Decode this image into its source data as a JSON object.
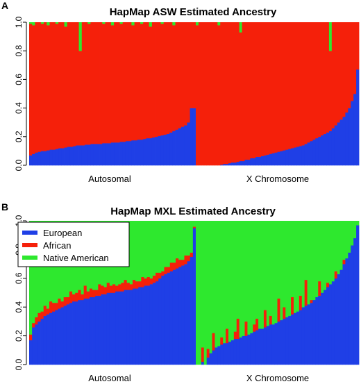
{
  "colors": {
    "european": "#1f3fe6",
    "african": "#f5200a",
    "native_american": "#2ee82e"
  },
  "chart_data": [
    {
      "panel_letter": "A",
      "type": "stacked-bar",
      "title": "HapMap ASW Estimated Ancestry",
      "ylim": [
        0,
        1
      ],
      "yticks": [
        "0.0",
        "0.2",
        "0.4",
        "0.6",
        "0.8",
        "1.0"
      ],
      "group_labels": [
        "Autosomal",
        "X Chromosome"
      ],
      "legend": null,
      "groups": [
        {
          "name": "Autosomal",
          "european": [
            0.07,
            0.08,
            0.09,
            0.095,
            0.1,
            0.1,
            0.105,
            0.11,
            0.11,
            0.115,
            0.12,
            0.12,
            0.125,
            0.13,
            0.13,
            0.135,
            0.14,
            0.14,
            0.14,
            0.145,
            0.145,
            0.15,
            0.15,
            0.15,
            0.15,
            0.155,
            0.155,
            0.155,
            0.16,
            0.16,
            0.16,
            0.165,
            0.165,
            0.17,
            0.17,
            0.175,
            0.175,
            0.18,
            0.18,
            0.185,
            0.19,
            0.19,
            0.195,
            0.2,
            0.205,
            0.21,
            0.215,
            0.22,
            0.23,
            0.24,
            0.25,
            0.26,
            0.27,
            0.28,
            0.3,
            0.4,
            0.4
          ],
          "native_american": [
            0.01,
            0.02,
            0.0,
            0.0,
            0.01,
            0.0,
            0.02,
            0.0,
            0.0,
            0.01,
            0.0,
            0.0,
            0.03,
            0.0,
            0.0,
            0.0,
            0.0,
            0.2,
            0.0,
            0.0,
            0.01,
            0.0,
            0.0,
            0.0,
            0.0,
            0.01,
            0.0,
            0.0,
            0.02,
            0.0,
            0.0,
            0.01,
            0.0,
            0.0,
            0.0,
            0.02,
            0.0,
            0.0,
            0.01,
            0.0,
            0.0,
            0.03,
            0.0,
            0.0,
            0.0,
            0.01,
            0.0,
            0.0,
            0.0,
            0.02,
            0.0,
            0.0,
            0.0,
            0.0,
            0.0,
            0.0,
            0.0
          ]
        },
        {
          "name": "X Chromosome",
          "european": [
            0.0,
            0.0,
            0.0,
            0.0,
            0.0,
            0.0,
            0.0,
            0.0,
            0.0,
            0.005,
            0.01,
            0.01,
            0.015,
            0.02,
            0.02,
            0.025,
            0.03,
            0.03,
            0.04,
            0.04,
            0.05,
            0.05,
            0.06,
            0.06,
            0.065,
            0.07,
            0.075,
            0.08,
            0.085,
            0.09,
            0.095,
            0.1,
            0.105,
            0.11,
            0.115,
            0.12,
            0.125,
            0.13,
            0.135,
            0.14,
            0.15,
            0.16,
            0.17,
            0.18,
            0.19,
            0.2,
            0.21,
            0.22,
            0.23,
            0.24,
            0.26,
            0.28,
            0.3,
            0.32,
            0.34,
            0.37,
            0.4,
            0.45,
            0.5,
            0.67
          ],
          "native_american": [
            0.02,
            0.0,
            0.0,
            0.0,
            0.0,
            0.0,
            0.0,
            0.0,
            0.02,
            0.0,
            0.0,
            0.0,
            0.0,
            0.0,
            0.0,
            0.0,
            0.07,
            0.0,
            0.0,
            0.0,
            0.0,
            0.0,
            0.0,
            0.0,
            0.0,
            0.0,
            0.0,
            0.0,
            0.0,
            0.0,
            0.0,
            0.0,
            0.0,
            0.0,
            0.0,
            0.0,
            0.0,
            0.0,
            0.0,
            0.0,
            0.0,
            0.0,
            0.0,
            0.0,
            0.0,
            0.0,
            0.0,
            0.0,
            0.0,
            0.2,
            0.0,
            0.0,
            0.0,
            0.0,
            0.0,
            0.0,
            0.0,
            0.0,
            0.0,
            0.0
          ]
        }
      ]
    },
    {
      "panel_letter": "B",
      "type": "stacked-bar",
      "title": "HapMap MXL Estimated Ancestry",
      "ylim": [
        0,
        1
      ],
      "yticks": [
        "0.0",
        "0.2",
        "0.4",
        "0.6",
        "0.8",
        "1.0"
      ],
      "group_labels": [
        "Autosomal",
        "X Chromosome"
      ],
      "legend": {
        "position": "top-left",
        "entries": [
          "European",
          "African",
          "Native American"
        ]
      },
      "groups": [
        {
          "name": "Autosomal",
          "european": [
            0.17,
            0.26,
            0.28,
            0.3,
            0.32,
            0.34,
            0.35,
            0.36,
            0.37,
            0.38,
            0.39,
            0.4,
            0.41,
            0.42,
            0.43,
            0.44,
            0.44,
            0.45,
            0.45,
            0.46,
            0.46,
            0.47,
            0.47,
            0.48,
            0.48,
            0.49,
            0.49,
            0.5,
            0.5,
            0.5,
            0.51,
            0.51,
            0.51,
            0.52,
            0.52,
            0.52,
            0.53,
            0.53,
            0.54,
            0.54,
            0.55,
            0.55,
            0.56,
            0.57,
            0.58,
            0.6,
            0.62,
            0.63,
            0.64,
            0.65,
            0.66,
            0.67,
            0.68,
            0.69,
            0.7,
            0.72,
            0.75,
            0.95
          ],
          "african": [
            0.04,
            0.03,
            0.05,
            0.06,
            0.05,
            0.07,
            0.04,
            0.08,
            0.06,
            0.05,
            0.07,
            0.04,
            0.06,
            0.05,
            0.08,
            0.05,
            0.06,
            0.07,
            0.04,
            0.09,
            0.05,
            0.06,
            0.05,
            0.04,
            0.08,
            0.06,
            0.05,
            0.07,
            0.05,
            0.06,
            0.04,
            0.05,
            0.06,
            0.07,
            0.05,
            0.04,
            0.06,
            0.05,
            0.04,
            0.07,
            0.05,
            0.06,
            0.04,
            0.05,
            0.06,
            0.04,
            0.03,
            0.05,
            0.04,
            0.06,
            0.05,
            0.07,
            0.05,
            0.04,
            0.06,
            0.04,
            0.03,
            0.01
          ]
        },
        {
          "name": "X Chromosome",
          "european": [
            0.0,
            0.0,
            0.02,
            0.0,
            0.05,
            0.08,
            0.1,
            0.12,
            0.13,
            0.14,
            0.15,
            0.15,
            0.16,
            0.17,
            0.18,
            0.18,
            0.19,
            0.2,
            0.2,
            0.21,
            0.22,
            0.23,
            0.24,
            0.25,
            0.25,
            0.26,
            0.27,
            0.28,
            0.28,
            0.29,
            0.3,
            0.31,
            0.32,
            0.33,
            0.34,
            0.35,
            0.36,
            0.37,
            0.38,
            0.4,
            0.41,
            0.42,
            0.43,
            0.45,
            0.47,
            0.48,
            0.5,
            0.52,
            0.54,
            0.56,
            0.58,
            0.6,
            0.63,
            0.66,
            0.7,
            0.74,
            0.78,
            0.83,
            0.88,
            0.97
          ],
          "african": [
            0.0,
            0.0,
            0.1,
            0.0,
            0.06,
            0.0,
            0.12,
            0.0,
            0.0,
            0.05,
            0.0,
            0.1,
            0.0,
            0.0,
            0.05,
            0.14,
            0.0,
            0.0,
            0.1,
            0.0,
            0.0,
            0.05,
            0.08,
            0.0,
            0.0,
            0.12,
            0.0,
            0.06,
            0.0,
            0.0,
            0.16,
            0.0,
            0.08,
            0.0,
            0.0,
            0.12,
            0.0,
            0.0,
            0.1,
            0.0,
            0.18,
            0.0,
            0.02,
            0.0,
            0.0,
            0.1,
            0.0,
            0.0,
            0.03,
            0.0,
            0.0,
            0.05,
            0.0,
            0.0,
            0.03,
            0.0,
            0.0,
            0.0,
            0.0,
            0.0
          ]
        }
      ]
    }
  ]
}
